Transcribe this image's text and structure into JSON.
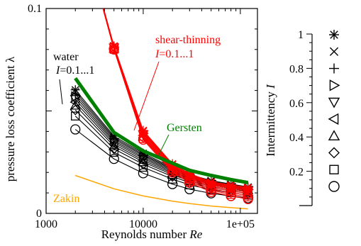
{
  "chart_data": [
    {
      "type": "line",
      "xlabel_prefix": "Reynolds number ",
      "xlabel_symbol": "Re",
      "ylabel": "pressure loss coefficient λ",
      "xscale": "log",
      "xlim": [
        1000,
        150000
      ],
      "ylim": [
        0,
        0.1
      ],
      "xtick_labels": [
        {
          "value": 1000,
          "label": "1000"
        },
        {
          "value": 10000,
          "label": "10000"
        },
        {
          "value": 100000,
          "label": "1e+05"
        }
      ],
      "ytick_labels": [
        {
          "value": 0,
          "label": "0"
        },
        {
          "value": 0.1,
          "label": "0.1"
        }
      ],
      "colors": {
        "water": "#000000",
        "shear_thinning": "#ff0000",
        "gersten": "#008000",
        "zakin": "#ffa500"
      },
      "annotations": {
        "water_name": "water",
        "water_range_symbol": "I",
        "water_range_value": "=0.1...1",
        "shear_name": "shear-thinning",
        "shear_range_symbol": "I",
        "shear_range_value": "=0.1...1",
        "gersten": "Gersten",
        "zakin": "Zakin"
      },
      "x": [
        2000,
        5000,
        10000,
        20000,
        30000,
        50000,
        80000,
        120000
      ],
      "series": [
        {
          "group": "water",
          "I": 0.1,
          "marker": "circle",
          "values": [
            0.041,
            0.0266,
            0.0196,
            0.0143,
            0.0118,
            0.0098,
            0.0085,
            0.0074
          ]
        },
        {
          "group": "water",
          "I": 0.2,
          "marker": "square",
          "values": [
            0.0475,
            0.0298,
            0.0225,
            0.0167,
            0.0139,
            0.0116,
            0.0101,
            0.0089
          ]
        },
        {
          "group": "water",
          "I": 0.3,
          "marker": "diamond",
          "values": [
            0.0505,
            0.0315,
            0.024,
            0.018,
            0.015,
            0.0125,
            0.011,
            0.0097
          ]
        },
        {
          "group": "water",
          "I": 0.4,
          "marker": "triangle-up",
          "values": [
            0.0527,
            0.0328,
            0.0251,
            0.0189,
            0.0158,
            0.0132,
            0.0117,
            0.0103
          ]
        },
        {
          "group": "water",
          "I": 0.5,
          "marker": "triangle-left",
          "values": [
            0.0543,
            0.0338,
            0.0259,
            0.0196,
            0.0164,
            0.0138,
            0.0122,
            0.0108
          ]
        },
        {
          "group": "water",
          "I": 0.6,
          "marker": "triangle-down",
          "values": [
            0.0557,
            0.0347,
            0.0267,
            0.0202,
            0.017,
            0.0143,
            0.0127,
            0.0113
          ]
        },
        {
          "group": "water",
          "I": 0.7,
          "marker": "triangle-right",
          "values": [
            0.057,
            0.0355,
            0.0274,
            0.0208,
            0.0175,
            0.0148,
            0.0131,
            0.0117
          ]
        },
        {
          "group": "water",
          "I": 0.8,
          "marker": "plus",
          "values": [
            0.0582,
            0.0363,
            0.0281,
            0.0214,
            0.018,
            0.0152,
            0.0135,
            0.0121
          ]
        },
        {
          "group": "water",
          "I": 0.9,
          "marker": "cross",
          "values": [
            0.0593,
            0.037,
            0.0287,
            0.0219,
            0.0185,
            0.0156,
            0.0139,
            0.0125
          ]
        },
        {
          "group": "water",
          "I": 1.0,
          "marker": "star",
          "values": [
            0.0603,
            0.0377,
            0.0293,
            0.0224,
            0.019,
            0.016,
            0.0143,
            0.0129
          ]
        },
        {
          "group": "shear-thinning",
          "I": 0.1,
          "marker": "circle",
          "values": [
            0.15,
            0.08,
            0.036,
            0.02,
            0.015,
            0.0105,
            0.0085,
            0.007
          ]
        },
        {
          "group": "shear-thinning",
          "I": 0.2,
          "marker": "square",
          "values": [
            0.15,
            0.0801,
            0.0365,
            0.0205,
            0.0156,
            0.0112,
            0.0093,
            0.008
          ]
        },
        {
          "group": "shear-thinning",
          "I": 0.3,
          "marker": "diamond",
          "values": [
            0.15,
            0.0803,
            0.037,
            0.021,
            0.0162,
            0.012,
            0.0101,
            0.0089
          ]
        },
        {
          "group": "shear-thinning",
          "I": 0.4,
          "marker": "triangle-up",
          "values": [
            0.15,
            0.0805,
            0.0375,
            0.0215,
            0.0168,
            0.0127,
            0.0109,
            0.0097
          ]
        },
        {
          "group": "shear-thinning",
          "I": 0.5,
          "marker": "triangle-left",
          "values": [
            0.15,
            0.0807,
            0.038,
            0.022,
            0.0173,
            0.0133,
            0.0116,
            0.0104
          ]
        },
        {
          "group": "shear-thinning",
          "I": 0.6,
          "marker": "triangle-down",
          "values": [
            0.15,
            0.0809,
            0.0385,
            0.0225,
            0.0178,
            0.0138,
            0.0122,
            0.011
          ]
        },
        {
          "group": "shear-thinning",
          "I": 0.7,
          "marker": "triangle-right",
          "values": [
            0.15,
            0.0811,
            0.039,
            0.023,
            0.0182,
            0.0142,
            0.0127,
            0.0115
          ]
        },
        {
          "group": "shear-thinning",
          "I": 0.8,
          "marker": "plus",
          "values": [
            0.15,
            0.0813,
            0.0395,
            0.0234,
            0.0186,
            0.0146,
            0.0131,
            0.0119
          ]
        },
        {
          "group": "shear-thinning",
          "I": 0.9,
          "marker": "cross",
          "values": [
            0.15,
            0.0815,
            0.04,
            0.0238,
            0.019,
            0.015,
            0.0135,
            0.0123
          ]
        },
        {
          "group": "shear-thinning",
          "I": 1.0,
          "marker": "star",
          "values": [
            0.15,
            0.0817,
            0.0405,
            0.0242,
            0.0194,
            0.0154,
            0.0139,
            0.0127
          ]
        }
      ],
      "reference_curves": [
        {
          "name": "Gersten",
          "x": [
            2000,
            5000,
            10000,
            20000,
            30000,
            50000,
            80000,
            120000
          ],
          "values": [
            0.066,
            0.0395,
            0.0305,
            0.0245,
            0.021,
            0.0185,
            0.0165,
            0.015
          ]
        },
        {
          "name": "Zakin",
          "x": [
            2000,
            5000,
            10000,
            20000,
            30000,
            50000,
            80000,
            120000
          ],
          "values": [
            0.0185,
            0.012,
            0.0085,
            0.006,
            0.0048,
            0.0036,
            0.0028,
            0.0022
          ]
        }
      ]
    },
    {
      "type": "legend-colorbar",
      "ylabel_prefix": "Intermittency ",
      "ylabel_symbol": "I",
      "ylim": [
        0,
        1
      ],
      "yticks": [
        {
          "value": 0.2,
          "label": "0.2"
        },
        {
          "value": 0.4,
          "label": "0.4"
        },
        {
          "value": 0.6,
          "label": "0.6"
        },
        {
          "value": 0.8,
          "label": "0.8"
        },
        {
          "value": 1.0,
          "label": "1"
        }
      ],
      "markers": [
        {
          "I": 1.0,
          "marker": "star"
        },
        {
          "I": 0.9,
          "marker": "cross"
        },
        {
          "I": 0.8,
          "marker": "plus"
        },
        {
          "I": 0.7,
          "marker": "triangle-right"
        },
        {
          "I": 0.6,
          "marker": "triangle-down"
        },
        {
          "I": 0.5,
          "marker": "triangle-left"
        },
        {
          "I": 0.4,
          "marker": "triangle-up"
        },
        {
          "I": 0.3,
          "marker": "diamond"
        },
        {
          "I": 0.2,
          "marker": "square"
        },
        {
          "I": 0.1,
          "marker": "circle"
        }
      ]
    }
  ]
}
